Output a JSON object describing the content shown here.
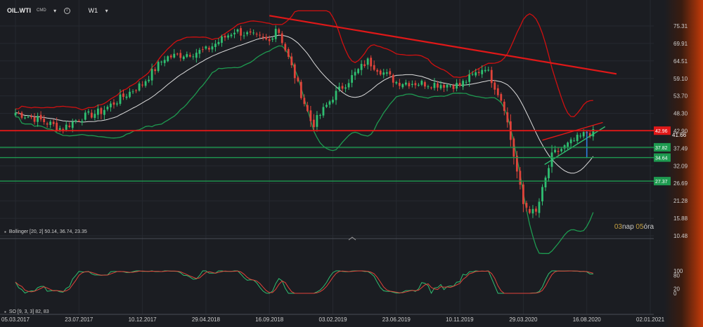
{
  "header": {
    "symbol": "OIL.WTI",
    "subtitle": "CMD",
    "timeframe": "W1",
    "icons": [
      "chevron-down-icon",
      "info-icon",
      "chevron-down-icon"
    ]
  },
  "timer": {
    "num1": "03",
    "unit1": "nap",
    "num2": "05",
    "unit2": "óra"
  },
  "indicators": {
    "bollinger": "Bollinger [20, 2] 50.14, 36.74, 23.35",
    "stochastic": "SO [9, 3, 3] 82, 83"
  },
  "colors": {
    "background": "#1b1d22",
    "bull": "#2fbf71",
    "bear": "#e0433a",
    "bb_outer": "#d01010",
    "bb_mid": "#dcdcdc",
    "bb_lower": "#1e9a50",
    "red_level": "#e01818",
    "green_level": "#1e9a50",
    "current_price": "#2f7fe0"
  },
  "chart_data": [
    {
      "type": "candlestick",
      "title": "OIL.WTI CMD W1",
      "y_ticks": [
        "75.31",
        "69.91",
        "64.51",
        "59.10",
        "53.70",
        "48.30",
        "42.90",
        "37.49",
        "32.09",
        "26.69",
        "21.28",
        "15.88",
        "10.48"
      ],
      "ylim": [
        10.48,
        80.5
      ],
      "x_ticks": [
        "05.03.2017",
        "23.07.2017",
        "10.12.2017",
        "29.04.2018",
        "16.09.2018",
        "03.02.2019",
        "23.06.2019",
        "10.11.2019",
        "29.03.2020",
        "16.08.2020",
        "02.01.2021"
      ],
      "price_path": [
        {
          "date": "05.03.2017",
          "close": 48.5
        },
        {
          "date": "01.05.2017",
          "close": 46.2
        },
        {
          "date": "15.06.2017",
          "close": 43.5
        },
        {
          "date": "23.07.2017",
          "close": 46.8
        },
        {
          "date": "10.09.2017",
          "close": 48.9
        },
        {
          "date": "10.12.2017",
          "close": 57.5
        },
        {
          "date": "28.01.2018",
          "close": 65.5
        },
        {
          "date": "29.04.2018",
          "close": 67.8
        },
        {
          "date": "01.07.2018",
          "close": 73.9
        },
        {
          "date": "16.09.2018",
          "close": 70.5
        },
        {
          "date": "02.10.2018",
          "close": 75.5
        },
        {
          "date": "20.12.2018",
          "close": 44.5
        },
        {
          "date": "03.02.2019",
          "close": 53.5
        },
        {
          "date": "20.04.2019",
          "close": 64.5
        },
        {
          "date": "23.06.2019",
          "close": 58.0
        },
        {
          "date": "10.11.2019",
          "close": 57.0
        },
        {
          "date": "05.01.2020",
          "close": 62.8
        },
        {
          "date": "15.02.2020",
          "close": 51.0
        },
        {
          "date": "29.03.2020",
          "close": 20.2
        },
        {
          "date": "25.04.2020",
          "close": 17.0
        },
        {
          "date": "01.06.2020",
          "close": 35.5
        },
        {
          "date": "16.08.2020",
          "close": 42.3
        },
        {
          "date": "30.08.2020",
          "close": 42.2
        }
      ],
      "levels": [
        {
          "label": "42.96",
          "value": 42.96,
          "color": "red"
        },
        {
          "label": "37.82",
          "value": 37.82,
          "color": "green"
        },
        {
          "label": "34.64",
          "value": 34.64,
          "color": "green"
        },
        {
          "label": "27.37",
          "value": 27.37,
          "color": "green"
        }
      ],
      "current_price_label": "41.66",
      "bollinger_last": {
        "upper": 50.14,
        "middle": 36.74,
        "lower": 23.35
      }
    },
    {
      "type": "line",
      "title": "SO [9, 3, 3] 82, 83",
      "y_ticks": [
        "100",
        "80",
        "20",
        "0"
      ],
      "ylim": [
        0,
        100
      ],
      "last_values": [
        82,
        83
      ]
    }
  ]
}
